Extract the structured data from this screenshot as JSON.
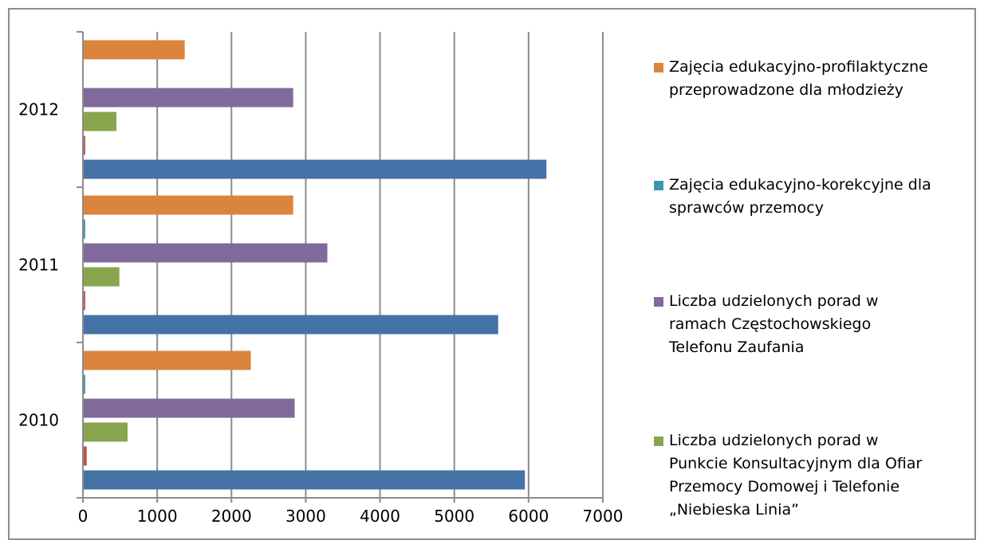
{
  "chart_data": {
    "type": "bar",
    "orientation": "horizontal",
    "title": "",
    "xlabel": "",
    "ylabel": "",
    "categories": [
      "2010",
      "2011",
      "2012"
    ],
    "xlim": [
      0,
      7000
    ],
    "xticks": [
      "0",
      "1000",
      "2000",
      "3000",
      "4000",
      "5000",
      "6000",
      "7000"
    ],
    "grid": "vertical",
    "legend_position": "right",
    "series": [
      {
        "name": "",
        "color": "#4572A7",
        "values": [
          5940,
          5580,
          6230
        ]
      },
      {
        "name": "",
        "color": "#C0504D",
        "values": [
          40,
          20,
          20
        ]
      },
      {
        "name": "Liczba udzielonych porad w Punkcie Konsultacyjnym dla Ofiar Przemocy Domowej i Telefonie „Niebieska Linia”",
        "color": "#89A54E",
        "values": [
          590,
          480,
          440
        ]
      },
      {
        "name": "Liczba udzielonych porad w ramach Częstochowskiego Telefonu Zaufania",
        "color": "#80699B",
        "values": [
          2840,
          3280,
          2820
        ]
      },
      {
        "name": "Zajęcia edukacyjno-korekcyjne dla sprawców przemocy",
        "color": "#3D96AE",
        "values": [
          20,
          20,
          0
        ]
      },
      {
        "name": "Zajęcia edukacyjno-profilaktyczne przeprowadzone dla młodzieży",
        "color": "#DB843D",
        "values": [
          2250,
          2820,
          1360
        ]
      }
    ]
  },
  "legend": [
    {
      "text": "Zajęcia edukacyjno-profilaktyczne\nprzeprowadzone dla młodzieży",
      "color": "#DB843D"
    },
    {
      "text": "Zajęcia edukacyjno-korekcyjne dla\nsprawców przemocy",
      "color": "#3D96AE"
    },
    {
      "text": "Liczba udzielonych porad w\nramach Częstochowskiego\nTelefonu Zaufania",
      "color": "#80699B"
    },
    {
      "text": "Liczba udzielonych porad w\nPunkcie Konsultacyjnym dla Ofiar\nPrzemocy Domowej i Telefonie\n„Niebieska Linia”",
      "color": "#89A54E"
    }
  ]
}
